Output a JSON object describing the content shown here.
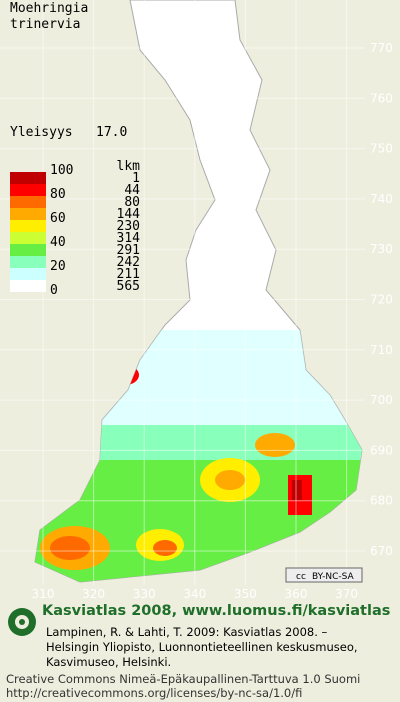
{
  "header": {
    "title_lines": [
      "Moehringia",
      "trinervia"
    ]
  },
  "frequency": {
    "label": "Yleisyys",
    "value": "17.0"
  },
  "legend": {
    "count_header": "lkm",
    "percent_labels": [
      "100",
      "80",
      "60",
      "40",
      "20",
      "0"
    ],
    "classes": [
      {
        "count": "1",
        "color": "#c00000"
      },
      {
        "count": "44",
        "color": "#ff0000"
      },
      {
        "count": "80",
        "color": "#ff6a00"
      },
      {
        "count": "144",
        "color": "#ffaa00"
      },
      {
        "count": "230",
        "color": "#ffee00"
      },
      {
        "count": "314",
        "color": "#ccff33"
      },
      {
        "count": "291",
        "color": "#66ee44"
      },
      {
        "count": "242",
        "color": "#88ffbb"
      },
      {
        "count": "211",
        "color": "#ccffff"
      },
      {
        "count": "565",
        "color": "#ffffff"
      }
    ]
  },
  "grid": {
    "north_labels": [
      "770",
      "760",
      "750",
      "740",
      "730",
      "720",
      "710",
      "700",
      "690",
      "680",
      "670"
    ],
    "east_labels": [
      "310",
      "320",
      "330",
      "340",
      "350",
      "360",
      "370"
    ]
  },
  "badge": "BY-NC-SA",
  "footer": {
    "heading": "Kasviatlas 2008, www.luomus.fi/kasviatlas",
    "citation": [
      "Lampinen, R. & Lahti, T. 2009: Kasviatlas 2008. –",
      "Helsingin Yliopisto, Luonnontieteellinen keskusmuseo,",
      "Kasvimuseo, Helsinki."
    ],
    "license": "Creative Commons Nimeä-Epäkaupallinen-Tarttuva 1.0 Suomi",
    "license_url": "http://creativecommons.org/licenses/by-nc-sa/1.0/fi"
  }
}
